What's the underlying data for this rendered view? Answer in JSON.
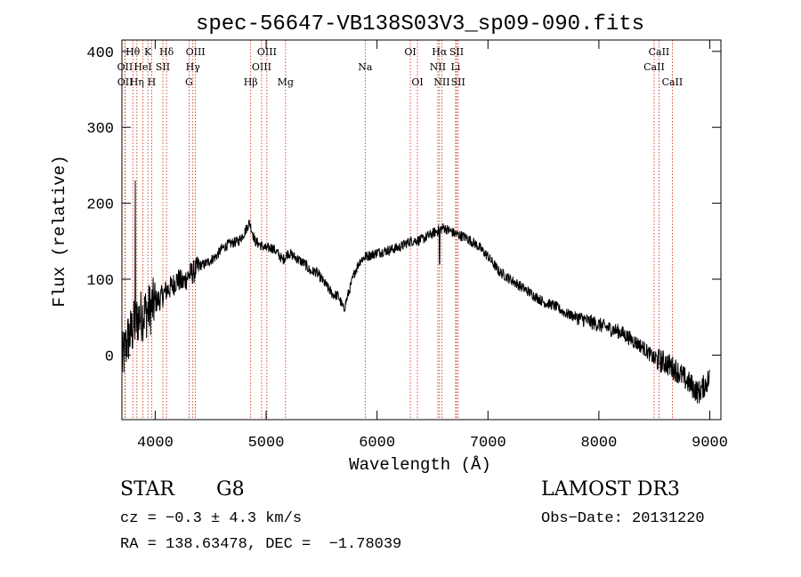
{
  "chart_data": {
    "type": "line",
    "title": "spec-56647-VB138S03V3_sp09-090.fits",
    "xlabel": "Wavelength (Å)",
    "ylabel": "Flux (relative)",
    "xlim": [
      3700,
      9100
    ],
    "ylim": [
      -85,
      415
    ],
    "x_ticks": [
      4000,
      5000,
      6000,
      7000,
      8000,
      9000
    ],
    "y_ticks": [
      0,
      100,
      200,
      300,
      400
    ],
    "grid": false,
    "series": [
      {
        "name": "flux",
        "x": [
          3700,
          3750,
          3800,
          3850,
          3900,
          3950,
          4000,
          4050,
          4100,
          4150,
          4200,
          4250,
          4300,
          4350,
          4400,
          4450,
          4500,
          4550,
          4600,
          4650,
          4700,
          4750,
          4800,
          4850,
          4900,
          4950,
          5000,
          5050,
          5100,
          5150,
          5200,
          5250,
          5300,
          5350,
          5400,
          5450,
          5500,
          5550,
          5600,
          5650,
          5700,
          5750,
          5800,
          5850,
          5900,
          5950,
          6000,
          6100,
          6200,
          6300,
          6400,
          6500,
          6560,
          6600,
          6700,
          6800,
          6900,
          7000,
          7100,
          7200,
          7300,
          7400,
          7500,
          7600,
          7700,
          7800,
          7900,
          8000,
          8100,
          8200,
          8300,
          8400,
          8500,
          8600,
          8700,
          8800,
          8900,
          9000
        ],
        "y": [
          -10,
          20,
          35,
          50,
          55,
          60,
          70,
          75,
          85,
          90,
          100,
          95,
          105,
          110,
          118,
          120,
          125,
          130,
          140,
          145,
          148,
          150,
          160,
          175,
          150,
          145,
          140,
          142,
          135,
          125,
          135,
          130,
          125,
          120,
          110,
          110,
          100,
          90,
          80,
          78,
          60,
          85,
          110,
          125,
          130,
          132,
          135,
          138,
          142,
          150,
          152,
          160,
          165,
          168,
          160,
          155,
          145,
          130,
          110,
          100,
          90,
          80,
          70,
          65,
          55,
          50,
          45,
          40,
          35,
          30,
          20,
          10,
          -5,
          -10,
          -20,
          -35,
          -50,
          -30
        ]
      }
    ],
    "lines": [
      {
        "label": "Hθ",
        "x": 3798,
        "row": 0
      },
      {
        "label": "OII",
        "x": 3727,
        "row": 1
      },
      {
        "label": "OII",
        "x": 3729,
        "row": 2
      },
      {
        "label": "Hη",
        "x": 3835,
        "row": 2
      },
      {
        "label": "K",
        "x": 3934,
        "row": 0
      },
      {
        "label": "HeI",
        "x": 3889,
        "row": 1
      },
      {
        "label": "SII",
        "x": 4069,
        "row": 1
      },
      {
        "label": "H",
        "x": 3968,
        "row": 2
      },
      {
        "label": "Hδ",
        "x": 4102,
        "row": 0
      },
      {
        "label": "OIII",
        "x": 4363,
        "row": 0
      },
      {
        "label": "Hγ",
        "x": 4340,
        "row": 1
      },
      {
        "label": "G",
        "x": 4305,
        "row": 2
      },
      {
        "label": "Hβ",
        "x": 4861,
        "row": 2
      },
      {
        "label": "OIII",
        "x": 5007,
        "row": 0
      },
      {
        "label": "OIII",
        "x": 4959,
        "row": 1
      },
      {
        "label": "Mg",
        "x": 5175,
        "row": 2
      },
      {
        "label": "Na",
        "x": 5893,
        "row": 1
      },
      {
        "label": "OI",
        "x": 6300,
        "row": 0
      },
      {
        "label": "OI",
        "x": 6364,
        "row": 2
      },
      {
        "label": "Hα",
        "x": 6563,
        "row": 0
      },
      {
        "label": "NII",
        "x": 6548,
        "row": 1
      },
      {
        "label": "NII",
        "x": 6584,
        "row": 2
      },
      {
        "label": "SII",
        "x": 6717,
        "row": 0
      },
      {
        "label": "Li",
        "x": 6708,
        "row": 1
      },
      {
        "label": "SII",
        "x": 6731,
        "row": 2
      },
      {
        "label": "CaII",
        "x": 8542,
        "row": 0
      },
      {
        "label": "CaII",
        "x": 8498,
        "row": 1
      },
      {
        "label": "CaII",
        "x": 8662,
        "row": 2
      }
    ]
  },
  "info": {
    "classification": "STAR",
    "subclass": "G8",
    "survey": "LAMOST DR3",
    "cz": "cz = −0.3 ± 4.3 km/s",
    "obs_date": "Obs−Date: 20131220",
    "coords": "RA = 138.63478, DEC =  −1.78039"
  },
  "colors": {
    "line_marker": "#cc2200",
    "spectrum": "#000000"
  }
}
